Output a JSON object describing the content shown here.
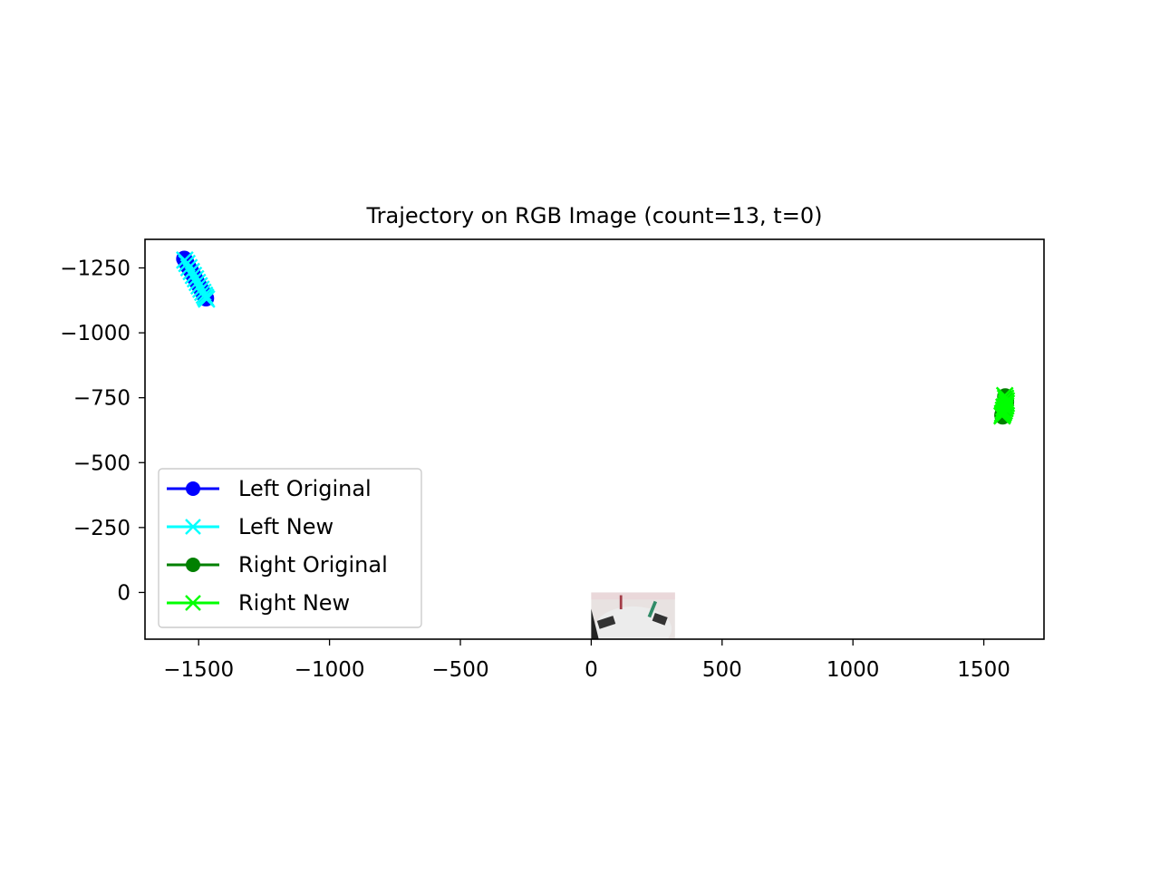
{
  "chart_data": {
    "type": "line",
    "title": "Trajectory on RGB Image (count=13, t=0)",
    "xlabel": "",
    "ylabel": "",
    "xlim": [
      -1705,
      1730
    ],
    "ylim": [
      180,
      -1360
    ],
    "y_inverted": true,
    "grid": false,
    "legend_position": "lower-left",
    "x_ticks": [
      -1500,
      -1000,
      -500,
      0,
      500,
      1000,
      1500
    ],
    "y_ticks": [
      -1250,
      -1000,
      -750,
      -500,
      -250,
      0
    ],
    "background_image": {
      "description_key": "rgb-camera-frame",
      "extent_x": [
        0,
        320
      ],
      "extent_y": [
        0,
        180
      ]
    },
    "series": [
      {
        "name": "Left Original",
        "color": "#0000ff",
        "marker": "circle",
        "x": [
          -1555,
          -1548,
          -1540,
          -1530,
          -1522,
          -1515,
          -1508,
          -1500,
          -1493,
          -1486,
          -1480,
          -1476,
          -1472
        ],
        "y": [
          -1285,
          -1272,
          -1255,
          -1240,
          -1225,
          -1212,
          -1198,
          -1185,
          -1172,
          -1160,
          -1148,
          -1140,
          -1133
        ]
      },
      {
        "name": "Left New",
        "color": "#00ffff",
        "marker": "x",
        "x": [
          -1553,
          -1545,
          -1537,
          -1528,
          -1520,
          -1512,
          -1505,
          -1498,
          -1491,
          -1484,
          -1478,
          -1474,
          -1470
        ],
        "y": [
          -1280,
          -1267,
          -1251,
          -1236,
          -1221,
          -1208,
          -1194,
          -1181,
          -1168,
          -1156,
          -1145,
          -1137,
          -1130
        ]
      },
      {
        "name": "Right Original",
        "color": "#008000",
        "marker": "circle",
        "x": [
          1582,
          1584,
          1585,
          1584,
          1582,
          1579,
          1576,
          1573,
          1571,
          1572,
          1574,
          1576,
          1578
        ],
        "y": [
          -755,
          -745,
          -735,
          -725,
          -715,
          -705,
          -697,
          -690,
          -683,
          -678,
          -688,
          -700,
          -712
        ]
      },
      {
        "name": "Right New",
        "color": "#00ff00",
        "marker": "x",
        "x": [
          1580,
          1583,
          1586,
          1586,
          1584,
          1581,
          1578,
          1575,
          1572,
          1570,
          1572,
          1575,
          1577
        ],
        "y": [
          -758,
          -748,
          -738,
          -728,
          -718,
          -708,
          -699,
          -692,
          -685,
          -680,
          -690,
          -702,
          -714
        ]
      }
    ]
  }
}
